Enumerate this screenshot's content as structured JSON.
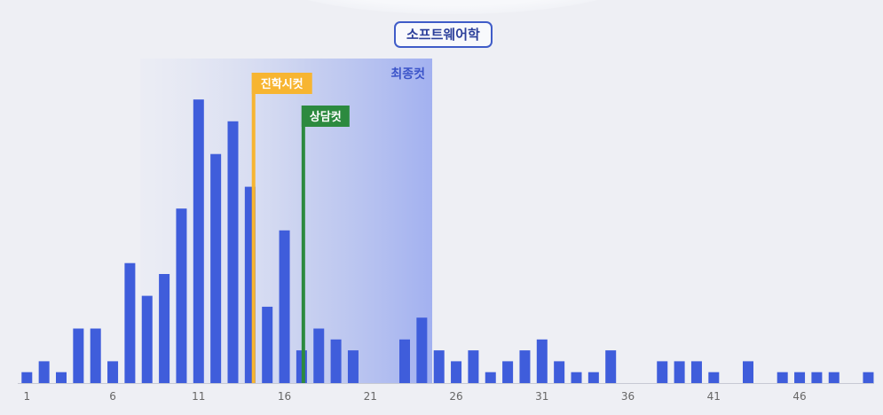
{
  "header": {
    "badge": "소프트웨어학"
  },
  "chart_data": {
    "type": "bar",
    "title": "소프트웨어학",
    "x": [
      1,
      2,
      3,
      4,
      5,
      6,
      7,
      8,
      9,
      10,
      11,
      12,
      13,
      14,
      15,
      16,
      17,
      18,
      19,
      20,
      21,
      22,
      23,
      24,
      25,
      26,
      27,
      28,
      29,
      30,
      31,
      32,
      33,
      34,
      35,
      36,
      37,
      38,
      39,
      40,
      41,
      42,
      43,
      44,
      45,
      46,
      47,
      48,
      49,
      50
    ],
    "values": [
      1,
      2,
      1,
      5,
      5,
      2,
      11,
      8,
      10,
      16,
      26,
      21,
      24,
      18,
      7,
      14,
      3,
      5,
      4,
      3,
      0,
      0,
      4,
      6,
      3,
      2,
      3,
      1,
      2,
      3,
      4,
      2,
      1,
      1,
      3,
      0,
      0,
      2,
      2,
      2,
      1,
      0,
      2,
      0,
      1,
      1,
      1,
      1,
      0,
      1
    ],
    "tick_labels": [
      "1",
      "6",
      "11",
      "16",
      "21",
      "26",
      "31",
      "36",
      "41",
      "46"
    ],
    "xlim": [
      1,
      50
    ],
    "ylim": [
      0,
      28
    ],
    "highlight_region": {
      "label": "최종컷",
      "x_start": 8,
      "x_end": 24.5
    },
    "markers": [
      {
        "label": "진학시컷",
        "x": 14.2,
        "color": "#f7b531"
      },
      {
        "label": "상담컷",
        "x": 17.1,
        "color": "#2c8a3f"
      }
    ],
    "colors": {
      "bar": "#3f5ddb",
      "region": "#8fa1ea",
      "region_label": "#3b54c9",
      "tick": "#666666"
    }
  }
}
